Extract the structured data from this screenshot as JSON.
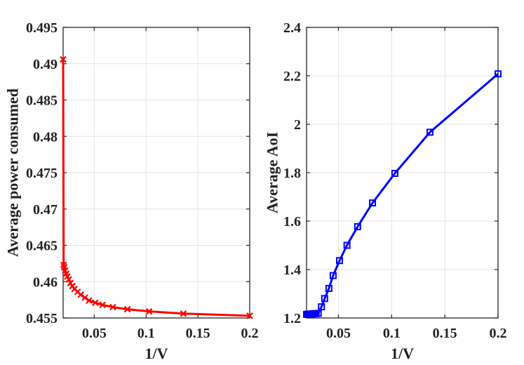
{
  "chart_data": [
    {
      "type": "line",
      "xlabel": "1/V",
      "ylabel": "Average power consumed",
      "xlim": [
        0.02,
        0.2
      ],
      "ylim": [
        0.455,
        0.495
      ],
      "xticks": [
        0.05,
        0.1,
        0.15,
        0.2
      ],
      "xtick_labels": [
        "0.05",
        "0.1",
        "0.15",
        "0.2"
      ],
      "yticks": [
        0.455,
        0.46,
        0.465,
        0.47,
        0.475,
        0.48,
        0.485,
        0.49,
        0.495
      ],
      "ytick_labels": [
        "0.455",
        "0.46",
        "0.465",
        "0.47",
        "0.475",
        "0.48",
        "0.485",
        "0.49",
        "0.495"
      ],
      "grid": true,
      "color": "#ff0000",
      "marker": "x",
      "series": [
        {
          "x": [
            0.02,
            0.0205,
            0.021,
            0.022,
            0.023,
            0.024,
            0.0255,
            0.027,
            0.029,
            0.031,
            0.034,
            0.037,
            0.041,
            0.045,
            0.051,
            0.058,
            0.068,
            0.082,
            0.103,
            0.136,
            0.2
          ],
          "y": [
            0.4906,
            0.4623,
            0.462,
            0.4615,
            0.4611,
            0.4607,
            0.4603,
            0.4598,
            0.4594,
            0.459,
            0.4586,
            0.4582,
            0.4578,
            0.4574,
            0.4571,
            0.4568,
            0.4565,
            0.4562,
            0.4559,
            0.4556,
            0.4553
          ]
        }
      ]
    },
    {
      "type": "line",
      "xlabel": "1/V",
      "ylabel": "Average AoI",
      "xlim": [
        0.02,
        0.2
      ],
      "ylim": [
        1.2,
        2.4
      ],
      "xticks": [
        0.05,
        0.1,
        0.15,
        0.2
      ],
      "xtick_labels": [
        "0.05",
        "0.1",
        "0.15",
        "0.2"
      ],
      "yticks": [
        1.2,
        1.4,
        1.6,
        1.8,
        2.0,
        2.2,
        2.4
      ],
      "ytick_labels": [
        "1.2",
        "1.4",
        "1.6",
        "1.8",
        "2",
        "2.2",
        "2.4"
      ],
      "grid": true,
      "color": "#0000ff",
      "marker": "square",
      "series": [
        {
          "x": [
            0.02,
            0.021,
            0.022,
            0.023,
            0.024,
            0.025,
            0.026,
            0.027,
            0.028,
            0.029,
            0.031,
            0.034,
            0.037,
            0.041,
            0.045,
            0.051,
            0.058,
            0.068,
            0.082,
            0.103,
            0.136,
            0.2
          ],
          "y": [
            1.215,
            1.215,
            1.216,
            1.216,
            1.216,
            1.217,
            1.217,
            1.217,
            1.218,
            1.218,
            1.219,
            1.246,
            1.28,
            1.322,
            1.375,
            1.437,
            1.5,
            1.577,
            1.675,
            1.797,
            1.967,
            2.208
          ]
        }
      ]
    }
  ]
}
